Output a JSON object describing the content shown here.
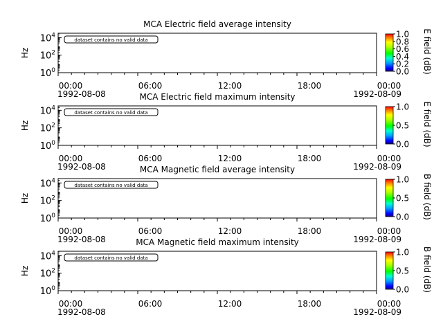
{
  "chart_data": [
    {
      "type": "heatmap",
      "title": "MCA  Electric field average intensity",
      "ylabel": "Hz",
      "yscale": "log",
      "ylim": [
        1,
        31622
      ],
      "y_ticks": [
        {
          "base": "10",
          "exp": "0"
        },
        {
          "base": "10",
          "exp": "2"
        },
        {
          "base": "10",
          "exp": "4"
        }
      ],
      "x_ticks": [
        "00:00",
        "06:00",
        "12:00",
        "18:00",
        "00:00"
      ],
      "x_dates": [
        "1992-08-08",
        "1992-08-09"
      ],
      "annotation": "dataset contains no valid data",
      "colorbar": {
        "label": "E field (dB)",
        "ticks": [
          "0.0",
          "0.2",
          "0.4",
          "0.6",
          "0.8",
          "1.0"
        ],
        "range": [
          0,
          1
        ]
      },
      "values": []
    },
    {
      "type": "heatmap",
      "title": "MCA  Electric field maximum intensity",
      "ylabel": "Hz",
      "yscale": "log",
      "ylim": [
        1,
        31622
      ],
      "y_ticks": [
        {
          "base": "10",
          "exp": "0"
        },
        {
          "base": "10",
          "exp": "2"
        },
        {
          "base": "10",
          "exp": "4"
        }
      ],
      "x_ticks": [
        "00:00",
        "06:00",
        "12:00",
        "18:00",
        "00:00"
      ],
      "x_dates": [
        "1992-08-08",
        "1992-08-09"
      ],
      "annotation": "dataset contains no valid data",
      "colorbar": {
        "label": "E field (dB)",
        "ticks": [
          "0.0",
          "0.5",
          "1.0"
        ],
        "range": [
          0,
          1
        ]
      },
      "values": []
    },
    {
      "type": "heatmap",
      "title": "MCA  Magnetic field average intensity",
      "ylabel": "Hz",
      "yscale": "log",
      "ylim": [
        1,
        31622
      ],
      "y_ticks": [
        {
          "base": "10",
          "exp": "0"
        },
        {
          "base": "10",
          "exp": "2"
        },
        {
          "base": "10",
          "exp": "4"
        }
      ],
      "x_ticks": [
        "00:00",
        "06:00",
        "12:00",
        "18:00",
        "00:00"
      ],
      "x_dates": [
        "1992-08-08",
        "1992-08-09"
      ],
      "annotation": "dataset contains no valid data",
      "colorbar": {
        "label": "B field (dB)",
        "ticks": [
          "0.0",
          "0.5",
          "1.0"
        ],
        "range": [
          0,
          1
        ]
      },
      "values": []
    },
    {
      "type": "heatmap",
      "title": "MCA  Magnetic field maximum intensity",
      "ylabel": "Hz",
      "yscale": "log",
      "ylim": [
        1,
        31622
      ],
      "y_ticks": [
        {
          "base": "10",
          "exp": "0"
        },
        {
          "base": "10",
          "exp": "2"
        },
        {
          "base": "10",
          "exp": "4"
        }
      ],
      "x_ticks": [
        "00:00",
        "06:00",
        "12:00",
        "18:00",
        "00:00"
      ],
      "x_dates": [
        "1992-08-08",
        "1992-08-09"
      ],
      "annotation": "dataset contains no valid data",
      "colorbar": {
        "label": "B field (dB)",
        "ticks": [
          "0.0",
          "0.5",
          "1.0"
        ],
        "range": [
          0,
          1
        ]
      },
      "values": []
    }
  ]
}
